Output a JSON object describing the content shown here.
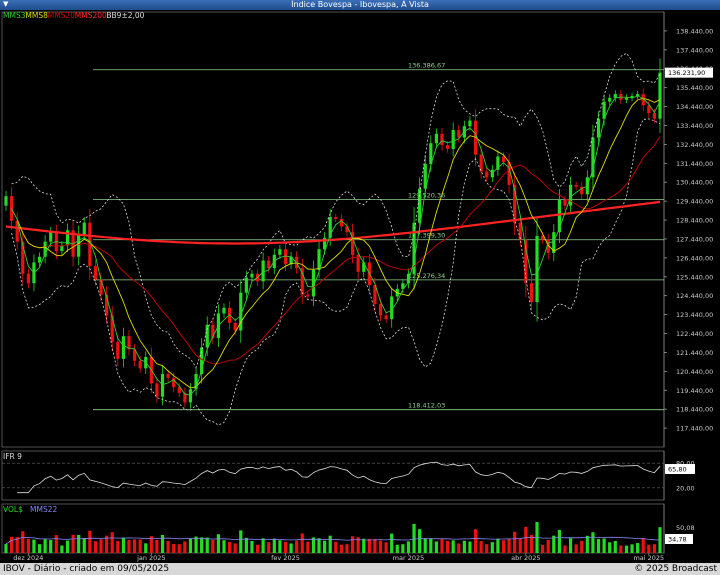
{
  "window": {
    "title": "Índice Bovespa - Ibovespa, À Vista"
  },
  "footer": {
    "left": "IBOV - Diário - criado em 09/05/2025",
    "right": "© 2025 Broadcast"
  },
  "colors": {
    "up": "#22dd22",
    "down": "#ee1111",
    "mms3": "#33cc33",
    "mms8": "#dddd00",
    "mms20": "#cc0000",
    "mms200": "#ff2222",
    "bb": "#dddddd",
    "hline": "#8fd08f"
  },
  "chart_data": [
    {
      "type": "candlestick",
      "legend": [
        {
          "label": "MMS3",
          "color": "#33cc33"
        },
        {
          "label": "MMS8",
          "color": "#dddd00"
        },
        {
          "label": "MMS20",
          "color": "#cc0000"
        },
        {
          "label": "MMS200",
          "color": "#ff2222"
        },
        {
          "label": "BB9±2,00",
          "color": "#dddddd"
        }
      ],
      "ylim": [
        116440,
        139440
      ],
      "y_ticks": [
        "138.440,00",
        "137.440,00",
        "136.440,00",
        "135.440,00",
        "134.440,00",
        "133.440,00",
        "132.440,00",
        "131.440,00",
        "130.440,00",
        "129.440,00",
        "128.440,00",
        "127.440,00",
        "126.440,00",
        "125.440,00",
        "124.440,00",
        "123.440,00",
        "122.440,00",
        "121.440,00",
        "120.440,00",
        "119.440,00",
        "118.440,00",
        "117.440,00"
      ],
      "x_labels": [
        "dez 2024",
        "jan 2025",
        "fev 2025",
        "mar 2025",
        "abr 2025",
        "mai 2025"
      ],
      "x_label_index": [
        4,
        26,
        50,
        72,
        93,
        115
      ],
      "last_price_label": "136.231,90",
      "horizontal_lines": [
        {
          "value": 136386.67,
          "label": "136.386,67"
        },
        {
          "value": 129520.36,
          "label": "129.520,36"
        },
        {
          "value": 127399.3,
          "label": "127.399,30"
        },
        {
          "value": 125276.34,
          "label": "125.276,34"
        },
        {
          "value": 118412.03,
          "label": "118.412,03"
        }
      ],
      "closes": [
        129700,
        128400,
        127300,
        125600,
        125100,
        126200,
        126500,
        127300,
        127800,
        126800,
        127100,
        127900,
        126500,
        127700,
        128300,
        126000,
        125300,
        124500,
        123400,
        122000,
        121100,
        122300,
        121600,
        121000,
        120600,
        121200,
        119800,
        119100,
        120300,
        120100,
        119600,
        119300,
        118800,
        119500,
        120300,
        121700,
        122900,
        122200,
        123500,
        123800,
        123000,
        122600,
        124600,
        125400,
        125600,
        125200,
        126300,
        125900,
        126600,
        126900,
        126100,
        126500,
        125900,
        124500,
        124400,
        125800,
        126900,
        127500,
        128600,
        128500,
        128100,
        127800,
        126600,
        125700,
        126200,
        125000,
        124000,
        123400,
        123200,
        124400,
        124800,
        125100,
        125600,
        128300,
        130100,
        131400,
        132500,
        133000,
        132400,
        132200,
        133200,
        132800,
        133400,
        133700,
        131900,
        131000,
        130700,
        131100,
        131800,
        131500,
        130300,
        128300,
        127400,
        125100,
        124100,
        127600,
        127400,
        126700,
        127800,
        129500,
        129200,
        130300,
        130200,
        129800,
        130700,
        132800,
        133800,
        134700,
        134900,
        135100,
        134800,
        134900,
        135000,
        135100,
        134500,
        134100,
        133800,
        136232
      ],
      "rsi_title": "IFR 9",
      "rsi_levels": [
        "80,00",
        "20,00"
      ],
      "rsi_last": "65,80",
      "vol_title": "VOL$",
      "vol_ma_label": "MMS22",
      "vol_level": "50,08",
      "vol_last": "34,78"
    }
  ]
}
